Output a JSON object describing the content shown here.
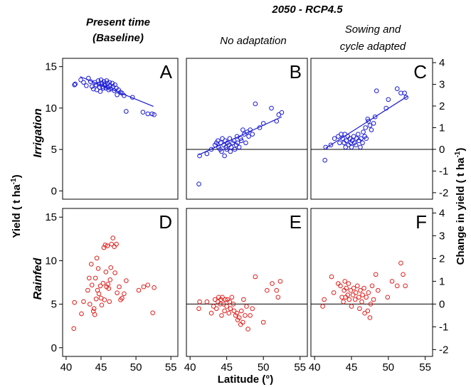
{
  "headers": {
    "present_line1": "Present time",
    "present_line2": "(Baseline)",
    "future": "2050 - RCP4.5",
    "no_adapt": "No adaptation",
    "adapt_line1": "Sowing and",
    "adapt_line2": "cycle adapted"
  },
  "row_labels": {
    "irrigation": "Irrigation",
    "rainfed": "Rainfed"
  },
  "axis_labels": {
    "y_left": "Yield ( t ha",
    "y_left_sup": "-1",
    "y_left_tail": ")",
    "y_right": "Change in yield ( t ha",
    "y_right_sup": "-1",
    "y_right_tail": ")",
    "x": "Latitude (°)"
  },
  "colors": {
    "irrigation": "#1a1ad6",
    "rainfed": "#e0201c",
    "frame": "#000000"
  },
  "chart_data": [
    {
      "type": "scatter",
      "panel": "A",
      "title": "A",
      "ylim": [
        -1,
        16
      ],
      "xlim": [
        39.5,
        56
      ],
      "yticks": [
        0,
        5,
        10,
        15
      ],
      "xticks": [
        40,
        45,
        50,
        55
      ],
      "fit": [
        [
          42,
          13.8
        ],
        [
          52.5,
          10.2
        ]
      ],
      "points": [
        [
          41.2,
          12.8
        ],
        [
          41.3,
          12.9
        ],
        [
          42.1,
          13.4
        ],
        [
          42.5,
          13.1
        ],
        [
          42.9,
          12.7
        ],
        [
          43.2,
          13.6
        ],
        [
          43.5,
          13.2
        ],
        [
          43.7,
          12.6
        ],
        [
          43.9,
          12.3
        ],
        [
          44.1,
          13.1
        ],
        [
          44.3,
          12.8
        ],
        [
          44.4,
          12.2
        ],
        [
          44.6,
          13.3
        ],
        [
          44.7,
          12.9
        ],
        [
          44.8,
          12.5
        ],
        [
          44.9,
          12.0
        ],
        [
          45.0,
          13.4
        ],
        [
          45.1,
          13.0
        ],
        [
          45.2,
          12.6
        ],
        [
          45.3,
          12.4
        ],
        [
          45.4,
          13.2
        ],
        [
          45.5,
          12.9
        ],
        [
          45.6,
          12.7
        ],
        [
          45.7,
          12.4
        ],
        [
          45.8,
          13.3
        ],
        [
          45.9,
          13.0
        ],
        [
          46.0,
          12.5
        ],
        [
          46.1,
          12.2
        ],
        [
          46.2,
          13.1
        ],
        [
          46.3,
          12.7
        ],
        [
          46.4,
          12.3
        ],
        [
          46.6,
          13.0
        ],
        [
          46.7,
          12.6
        ],
        [
          46.9,
          12.1
        ],
        [
          47.0,
          12.8
        ],
        [
          47.2,
          12.4
        ],
        [
          47.3,
          11.6
        ],
        [
          47.5,
          12.2
        ],
        [
          47.8,
          11.9
        ],
        [
          48.0,
          11.8
        ],
        [
          48.3,
          11.5
        ],
        [
          48.6,
          9.6
        ],
        [
          49.5,
          11.3
        ],
        [
          51.0,
          9.5
        ],
        [
          51.7,
          9.3
        ],
        [
          52.3,
          9.3
        ],
        [
          52.6,
          9.2
        ]
      ]
    },
    {
      "type": "scatter",
      "panel": "B",
      "title": "B",
      "ylim": [
        -2.3,
        4.2
      ],
      "xlim": [
        39.5,
        56
      ],
      "xticks": [
        40,
        45,
        50,
        55
      ],
      "zero_line": 0,
      "fit": [
        [
          41.2,
          -0.25
        ],
        [
          52.5,
          1.5
        ]
      ],
      "points": [
        [
          41.2,
          -1.6
        ],
        [
          41.3,
          -0.3
        ],
        [
          42.3,
          -0.2
        ],
        [
          42.9,
          0.0
        ],
        [
          43.4,
          0.2
        ],
        [
          43.6,
          0.3
        ],
        [
          43.8,
          0.4
        ],
        [
          43.9,
          0.1
        ],
        [
          44.1,
          0.0
        ],
        [
          44.2,
          0.3
        ],
        [
          44.3,
          -0.1
        ],
        [
          44.4,
          0.5
        ],
        [
          44.6,
          0.2
        ],
        [
          44.7,
          -0.3
        ],
        [
          44.8,
          0.4
        ],
        [
          44.9,
          0.1
        ],
        [
          45.0,
          0.0
        ],
        [
          45.1,
          0.3
        ],
        [
          45.3,
          0.2
        ],
        [
          45.4,
          0.5
        ],
        [
          45.5,
          -0.1
        ],
        [
          45.6,
          0.1
        ],
        [
          45.8,
          0.3
        ],
        [
          46.0,
          0.4
        ],
        [
          46.1,
          0.0
        ],
        [
          46.3,
          0.2
        ],
        [
          46.4,
          0.6
        ],
        [
          46.5,
          0.3
        ],
        [
          46.7,
          0.1
        ],
        [
          46.9,
          0.5
        ],
        [
          47.0,
          0.4
        ],
        [
          47.2,
          0.9
        ],
        [
          47.4,
          0.7
        ],
        [
          47.6,
          0.3
        ],
        [
          47.8,
          0.8
        ],
        [
          48.0,
          0.6
        ],
        [
          48.2,
          0.9
        ],
        [
          48.5,
          0.7
        ],
        [
          48.9,
          2.1
        ],
        [
          49.5,
          1.0
        ],
        [
          50.0,
          1.2
        ],
        [
          51.1,
          1.9
        ],
        [
          51.8,
          1.3
        ],
        [
          52.1,
          1.6
        ],
        [
          52.5,
          1.7
        ]
      ]
    },
    {
      "type": "scatter",
      "panel": "C",
      "title": "C",
      "ylim": [
        -2.3,
        4.2
      ],
      "xlim": [
        39.5,
        56
      ],
      "xticks": [
        40,
        45,
        50,
        55
      ],
      "yticks": [
        -2,
        -1,
        0,
        1,
        2,
        3,
        4
      ],
      "zero_line": 0,
      "fit": [
        [
          41.5,
          0.05
        ],
        [
          52.6,
          2.45
        ]
      ],
      "points": [
        [
          41.4,
          -0.5
        ],
        [
          41.5,
          0.1
        ],
        [
          42.2,
          0.2
        ],
        [
          42.7,
          0.5
        ],
        [
          43.2,
          0.6
        ],
        [
          43.4,
          0.3
        ],
        [
          43.6,
          0.7
        ],
        [
          43.8,
          0.5
        ],
        [
          44.0,
          0.3
        ],
        [
          44.1,
          0.7
        ],
        [
          44.2,
          0.1
        ],
        [
          44.3,
          0.4
        ],
        [
          44.5,
          0.6
        ],
        [
          44.6,
          0.2
        ],
        [
          44.8,
          0.5
        ],
        [
          44.9,
          0.3
        ],
        [
          45.0,
          0.1
        ],
        [
          45.1,
          0.4
        ],
        [
          45.3,
          0.6
        ],
        [
          45.4,
          0.3
        ],
        [
          45.6,
          0.2
        ],
        [
          45.7,
          0.5
        ],
        [
          45.9,
          0.7
        ],
        [
          46.0,
          0.4
        ],
        [
          46.2,
          0.1
        ],
        [
          46.3,
          0.5
        ],
        [
          46.5,
          0.3
        ],
        [
          46.6,
          0.8
        ],
        [
          46.8,
          0.6
        ],
        [
          46.9,
          1.0
        ],
        [
          47.0,
          0.5
        ],
        [
          47.2,
          1.4
        ],
        [
          47.3,
          1.3
        ],
        [
          47.5,
          1.1
        ],
        [
          47.7,
          0.9
        ],
        [
          48.0,
          1.2
        ],
        [
          48.2,
          1.5
        ],
        [
          48.4,
          2.7
        ],
        [
          49.7,
          1.9
        ],
        [
          50.0,
          2.3
        ],
        [
          51.2,
          2.8
        ],
        [
          51.7,
          2.6
        ],
        [
          52.2,
          2.6
        ],
        [
          52.4,
          2.4
        ]
      ]
    },
    {
      "type": "scatter",
      "panel": "D",
      "title": "D",
      "ylim": [
        -1,
        16
      ],
      "xlim": [
        39.5,
        56
      ],
      "yticks": [
        0,
        5,
        10,
        15
      ],
      "xticks": [
        40,
        45,
        50,
        55
      ],
      "points": [
        [
          41.1,
          2.2
        ],
        [
          41.2,
          5.2
        ],
        [
          42.2,
          3.9
        ],
        [
          42.5,
          5.3
        ],
        [
          43.1,
          6.6
        ],
        [
          43.3,
          8.0
        ],
        [
          43.4,
          5.0
        ],
        [
          43.6,
          9.6
        ],
        [
          43.7,
          7.2
        ],
        [
          43.9,
          4.2
        ],
        [
          44.0,
          4.5
        ],
        [
          44.1,
          3.8
        ],
        [
          44.2,
          8.0
        ],
        [
          44.3,
          5.6
        ],
        [
          44.4,
          10.3
        ],
        [
          44.5,
          6.6
        ],
        [
          44.6,
          9.1
        ],
        [
          44.7,
          6.2
        ],
        [
          44.9,
          7.1
        ],
        [
          45.0,
          5.7
        ],
        [
          45.1,
          4.9
        ],
        [
          45.3,
          7.4
        ],
        [
          45.4,
          11.5
        ],
        [
          45.5,
          5.5
        ],
        [
          45.6,
          11.8
        ],
        [
          45.7,
          8.7
        ],
        [
          45.8,
          7.0
        ],
        [
          45.9,
          11.7
        ],
        [
          46.0,
          7.3
        ],
        [
          46.1,
          6.8
        ],
        [
          46.2,
          5.3
        ],
        [
          46.3,
          7.8
        ],
        [
          46.4,
          9.2
        ],
        [
          46.5,
          11.9
        ],
        [
          46.7,
          12.6
        ],
        [
          46.9,
          11.6
        ],
        [
          47.0,
          8.6
        ],
        [
          47.2,
          11.9
        ],
        [
          47.3,
          6.3
        ],
        [
          47.6,
          7.0
        ],
        [
          47.8,
          5.5
        ],
        [
          48.0,
          5.7
        ],
        [
          48.3,
          6.2
        ],
        [
          48.6,
          7.7
        ],
        [
          50.4,
          6.6
        ],
        [
          51.1,
          7.0
        ],
        [
          51.7,
          7.2
        ],
        [
          52.4,
          4.0
        ],
        [
          52.6,
          6.9
        ]
      ]
    },
    {
      "type": "scatter",
      "panel": "E",
      "title": "E",
      "ylim": [
        -2.3,
        4.2
      ],
      "xlim": [
        39.5,
        56
      ],
      "xticks": [
        40,
        45,
        50,
        55
      ],
      "zero_line": 0,
      "points": [
        [
          41.2,
          -0.2
        ],
        [
          41.3,
          0.1
        ],
        [
          42.3,
          0.1
        ],
        [
          42.9,
          -0.4
        ],
        [
          43.2,
          -0.1
        ],
        [
          43.4,
          0.2
        ],
        [
          43.6,
          -0.2
        ],
        [
          43.8,
          0.1
        ],
        [
          43.9,
          0.3
        ],
        [
          44.1,
          0.0
        ],
        [
          44.2,
          0.2
        ],
        [
          44.3,
          -0.5
        ],
        [
          44.4,
          0.3
        ],
        [
          44.6,
          0.0
        ],
        [
          44.7,
          -0.3
        ],
        [
          44.8,
          0.2
        ],
        [
          45.0,
          -0.1
        ],
        [
          45.1,
          0.2
        ],
        [
          45.3,
          -0.4
        ],
        [
          45.4,
          0.1
        ],
        [
          45.5,
          -0.2
        ],
        [
          45.7,
          0.3
        ],
        [
          45.9,
          0.0
        ],
        [
          46.0,
          -0.3
        ],
        [
          46.2,
          -0.5
        ],
        [
          46.4,
          -0.4
        ],
        [
          46.5,
          -0.7
        ],
        [
          46.7,
          -0.6
        ],
        [
          46.9,
          -0.9
        ],
        [
          47.0,
          -0.3
        ],
        [
          47.2,
          -0.8
        ],
        [
          47.3,
          0.2
        ],
        [
          47.5,
          -0.5
        ],
        [
          47.7,
          -0.1
        ],
        [
          47.9,
          -1.1
        ],
        [
          48.2,
          -0.5
        ],
        [
          48.5,
          -0.2
        ],
        [
          48.9,
          1.2
        ],
        [
          50.0,
          -0.8
        ],
        [
          50.5,
          0.6
        ],
        [
          51.2,
          0.9
        ],
        [
          51.8,
          0.6
        ],
        [
          52.0,
          0.3
        ],
        [
          52.3,
          1.0
        ]
      ]
    },
    {
      "type": "scatter",
      "panel": "F",
      "title": "F",
      "ylim": [
        -2.3,
        4.2
      ],
      "xlim": [
        39.5,
        56
      ],
      "xticks": [
        40,
        45,
        50,
        55
      ],
      "yticks": [
        -2,
        -1,
        0,
        1,
        2,
        3,
        4
      ],
      "zero_line": 0,
      "points": [
        [
          41.1,
          -0.1
        ],
        [
          41.3,
          0.2
        ],
        [
          42.3,
          1.2
        ],
        [
          42.6,
          0.5
        ],
        [
          43.2,
          0.9
        ],
        [
          43.5,
          0.8
        ],
        [
          43.7,
          0.3
        ],
        [
          43.9,
          0.1
        ],
        [
          44.0,
          0.6
        ],
        [
          44.1,
          1.0
        ],
        [
          44.2,
          0.3
        ],
        [
          44.3,
          0.7
        ],
        [
          44.5,
          0.4
        ],
        [
          44.6,
          0.9
        ],
        [
          44.7,
          0.2
        ],
        [
          44.9,
          0.6
        ],
        [
          45.0,
          -0.1
        ],
        [
          45.2,
          0.4
        ],
        [
          45.3,
          0.7
        ],
        [
          45.5,
          0.2
        ],
        [
          45.6,
          0.5
        ],
        [
          45.8,
          0.8
        ],
        [
          46.0,
          0.3
        ],
        [
          46.1,
          -0.2
        ],
        [
          46.2,
          0.6
        ],
        [
          46.4,
          0.1
        ],
        [
          46.5,
          0.4
        ],
        [
          46.7,
          0.7
        ],
        [
          46.8,
          -0.4
        ],
        [
          47.0,
          0.3
        ],
        [
          47.2,
          -0.3
        ],
        [
          47.3,
          0.5
        ],
        [
          47.5,
          -0.6
        ],
        [
          47.6,
          0.0
        ],
        [
          47.8,
          0.8
        ],
        [
          48.0,
          0.2
        ],
        [
          48.3,
          1.3
        ],
        [
          48.6,
          0.6
        ],
        [
          49.9,
          0.3
        ],
        [
          50.5,
          1.0
        ],
        [
          51.2,
          0.8
        ],
        [
          51.7,
          1.8
        ],
        [
          52.0,
          1.3
        ],
        [
          52.3,
          0.8
        ]
      ]
    }
  ]
}
